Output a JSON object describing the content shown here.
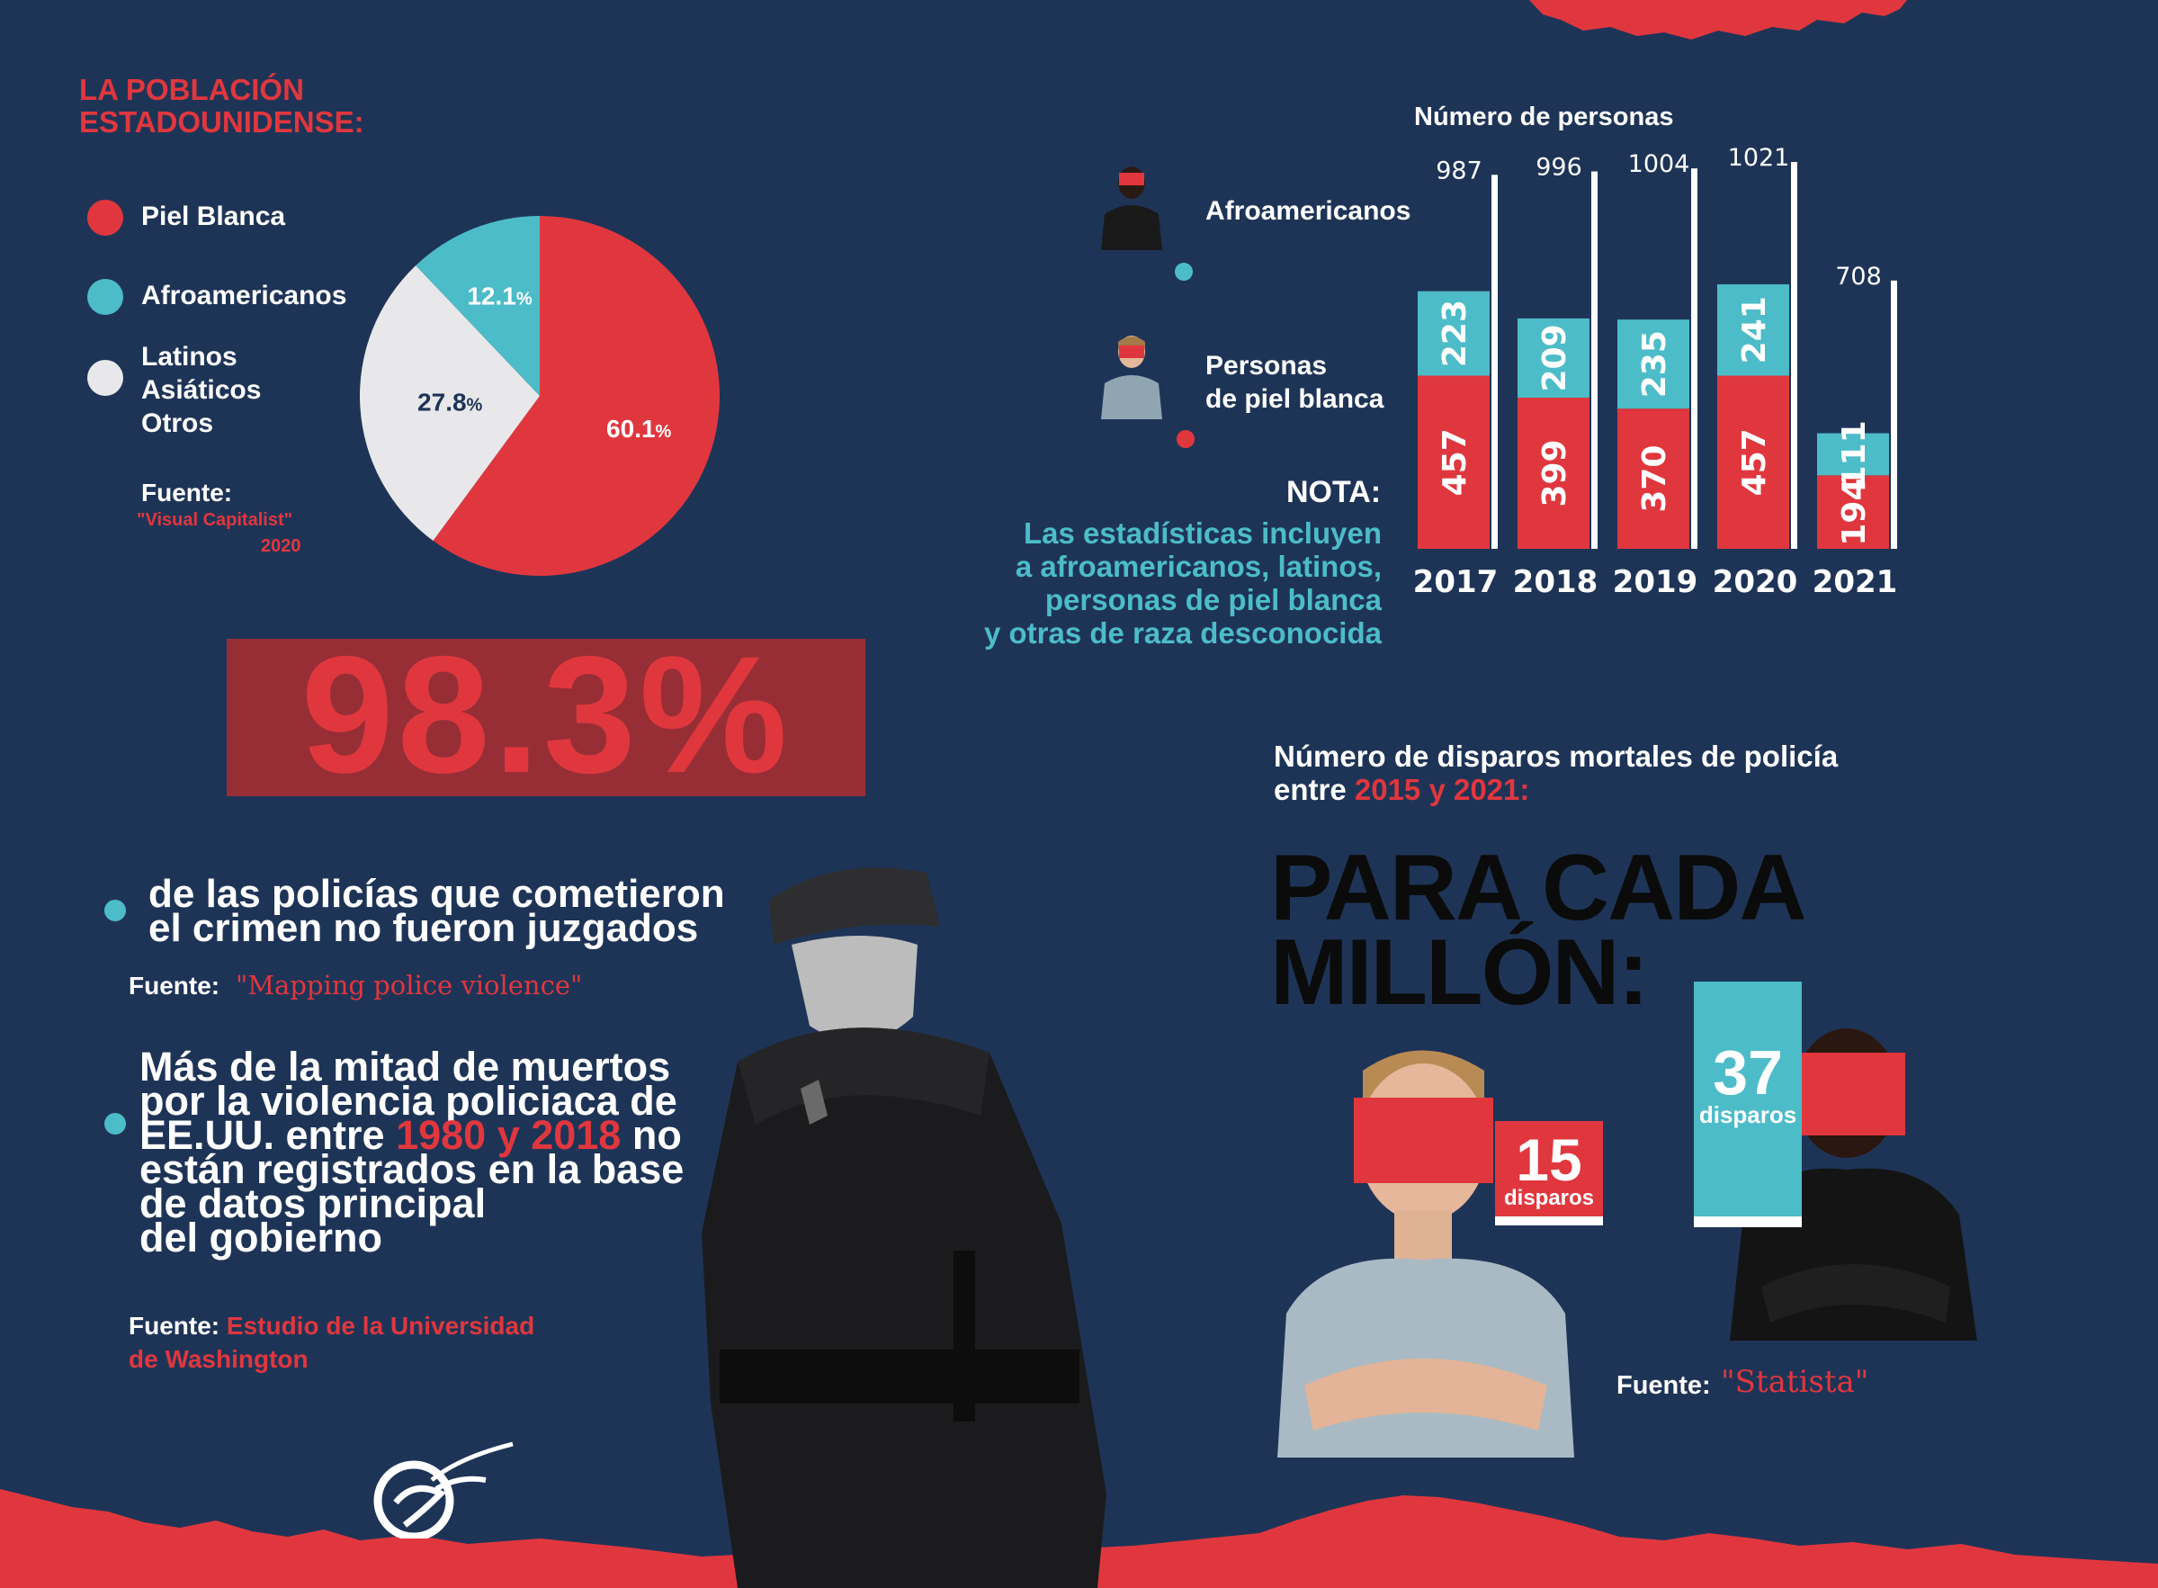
{
  "population": {
    "title_line1": "LA POBLACIÓN",
    "title_line2": "ESTADOUNIDENSE:",
    "legend": [
      {
        "label_lines": [
          "Piel Blanca"
        ],
        "color": "#e0373e"
      },
      {
        "label_lines": [
          "Afroamericanos"
        ],
        "color": "#4cbcc8"
      },
      {
        "label_lines": [
          "Latinos",
          "Asiáticos",
          "Otros"
        ],
        "color": "#e8e8ea"
      }
    ],
    "source_label": "Fuente:",
    "source_name": "\"Visual Capitalist\"",
    "source_year": "2020"
  },
  "chart_data": [
    {
      "type": "pie",
      "slices": [
        {
          "label": "Piel Blanca",
          "value": 60.1,
          "text": "60.1",
          "color": "#e0373e"
        },
        {
          "label": "Latinos Asiáticos Otros",
          "value": 27.8,
          "text": "27.8",
          "color": "#e8e8ea"
        },
        {
          "label": "Afroamericanos",
          "value": 12.1,
          "text": "12.1",
          "color": "#4cbcc8"
        }
      ],
      "unit": "%"
    },
    {
      "type": "bar",
      "title": "Número de personas",
      "categories": [
        "2017",
        "2018",
        "2019",
        "2020",
        "2021"
      ],
      "totals": [
        987,
        996,
        1004,
        1021,
        708
      ],
      "series": [
        {
          "name": "Personas de piel blanca",
          "values": [
            457,
            399,
            370,
            457,
            194
          ],
          "color": "#e0373e"
        },
        {
          "name": "Afroamericanos",
          "values": [
            223,
            209,
            235,
            241,
            111
          ],
          "color": "#4cbcc8"
        }
      ],
      "ylim": [
        0,
        1021
      ]
    },
    {
      "type": "bar",
      "title": "Número de disparos mortales de policía entre 2015 y 2021:",
      "categories": [
        "Piel blanca",
        "Afroamericanos"
      ],
      "values": [
        15,
        37
      ],
      "unit": "disparos"
    }
  ],
  "bar_legend": {
    "title": "Número de personas",
    "black_label": "Afroamericanos",
    "white_label_line1": "Personas",
    "white_label_line2": "de piel blanca"
  },
  "note": {
    "title": "NOTA:",
    "lines": [
      "Las estadísticas incluyen",
      "a afroamericanos, latinos,",
      "personas de piel blanca",
      "y otras de raza desconocida"
    ]
  },
  "stat": {
    "percent": "98.3%",
    "text_line1": "de las policías que cometieron",
    "text_line2": "el crimen no fueron juzgados",
    "source_label": "Fuente:",
    "source_name": "\"Mapping police violence\""
  },
  "unregistered": {
    "line1": "Más de la mitad de muertos",
    "line2": "por la violencia policiaca de",
    "line3_pre": "EE.UU. entre ",
    "line3_hl": "1980 y 2018",
    "line3_post": " no",
    "line4": "están registrados en la base",
    "line5": "de datos principal",
    "line6": "del gobierno",
    "source_label": "Fuente:",
    "source_line1": "Estudio de la Universidad",
    "source_line2": "de Washington"
  },
  "shootings": {
    "title_line1": "Número de disparos mortales de policía",
    "title_line2_pre": "entre ",
    "title_line2_hl": "2015 y 2021:",
    "big_line1": "PARA CADA",
    "big_line2": "MILLÓN:",
    "white_value": "15",
    "white_unit": "disparos",
    "black_value": "37",
    "black_unit": "disparos",
    "source_label": "Fuente:",
    "source_name": "\"Statista\""
  },
  "colors": {
    "background": "#1e3457",
    "red": "#e0373e",
    "cyan": "#4cbcc8"
  }
}
